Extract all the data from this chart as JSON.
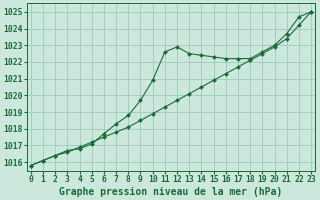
{
  "background_color": "#cce8dd",
  "grid_color": "#99ccbb",
  "line_color": "#1a6b35",
  "marker_color": "#1a6b35",
  "xlabel": "Graphe pression niveau de la mer (hPa)",
  "xlim": [
    -0.3,
    23.3
  ],
  "ylim": [
    1015.5,
    1025.5
  ],
  "yticks": [
    1016,
    1017,
    1018,
    1019,
    1020,
    1021,
    1022,
    1023,
    1024,
    1025
  ],
  "xticks": [
    0,
    1,
    2,
    3,
    4,
    5,
    6,
    7,
    8,
    9,
    10,
    11,
    12,
    13,
    14,
    15,
    16,
    17,
    18,
    19,
    20,
    21,
    22,
    23
  ],
  "line1_x": [
    0,
    1,
    2,
    3,
    4,
    5,
    6,
    7,
    8,
    9,
    10,
    11,
    12,
    13,
    14,
    15,
    16,
    17,
    18,
    19,
    20,
    21,
    22,
    23
  ],
  "line1_y": [
    1015.8,
    1016.1,
    1016.4,
    1016.7,
    1016.8,
    1017.1,
    1017.7,
    1018.3,
    1018.8,
    1019.7,
    1020.9,
    1022.6,
    1022.9,
    1022.5,
    1022.4,
    1022.3,
    1022.2,
    1022.2,
    1022.2,
    1022.6,
    1023.0,
    1023.7,
    1024.7,
    1025.0
  ],
  "line2_x": [
    0,
    1,
    2,
    3,
    4,
    5,
    6,
    7,
    8,
    9,
    10,
    11,
    12,
    13,
    14,
    15,
    16,
    17,
    18,
    19,
    20,
    21,
    22,
    23
  ],
  "line2_y": [
    1015.8,
    1016.1,
    1016.4,
    1016.6,
    1016.9,
    1017.2,
    1017.5,
    1017.8,
    1018.1,
    1018.5,
    1018.9,
    1019.3,
    1019.7,
    1020.1,
    1020.5,
    1020.9,
    1021.3,
    1021.7,
    1022.1,
    1022.5,
    1022.9,
    1023.4,
    1024.2,
    1025.0
  ],
  "font_family": "monospace",
  "tick_fontsize": 5.8,
  "label_fontsize": 7.0
}
